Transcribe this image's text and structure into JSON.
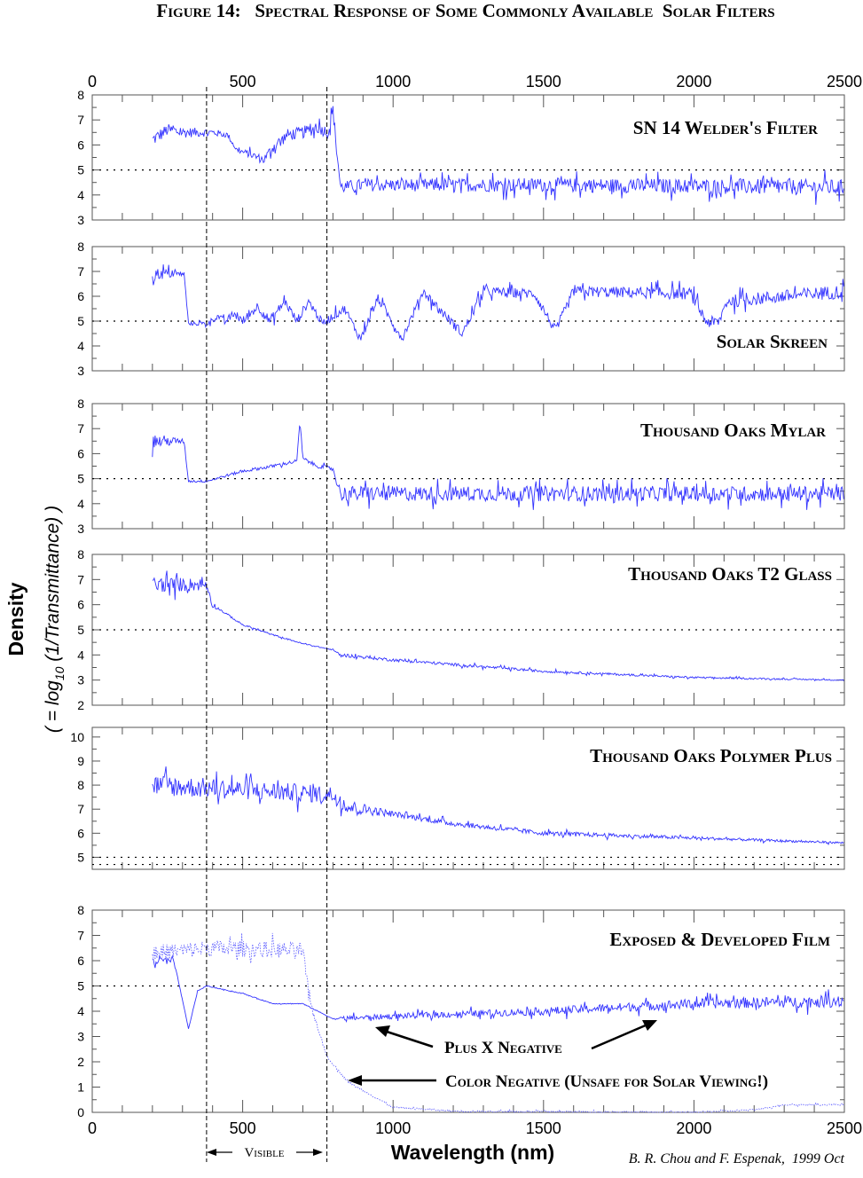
{
  "chart_data": {
    "type": "line",
    "title": "Figure 14:   Spectral Response of Some Commonly Available  Solar Filters",
    "xlabel": "Wavelength (nm)",
    "ylabel": "Density",
    "ylabel_sub_prefix": "( = log",
    "ylabel_sub_base": "10",
    "ylabel_sub_suffix": " (1/Transmittance) )",
    "xlim": [
      0,
      2500
    ],
    "xticks": [
      0,
      500,
      1000,
      1500,
      2000,
      2500
    ],
    "visible_band": {
      "label": "Visible",
      "range": [
        380,
        780
      ]
    },
    "credit": "B. R. Chou and F. Espenak,  1999 Oct",
    "color": "#3333ff",
    "panels": [
      {
        "label": "SN 14 Welder's Filter",
        "ylim": [
          3,
          8
        ],
        "yticks": [
          3,
          4,
          5,
          6,
          7,
          8
        ],
        "ref_lines": [
          5
        ],
        "series": [
          {
            "name": "SN 14 Welder's Filter",
            "style": "solid",
            "noise": [
              [
                200,
                0.35
              ],
              [
                480,
                0.12
              ],
              [
                620,
                0.3
              ],
              [
                2500,
                0.4
              ]
            ],
            "points": [
              [
                200,
                6.2
              ],
              [
                250,
                6.6
              ],
              [
                300,
                6.5
              ],
              [
                400,
                6.5
              ],
              [
                450,
                6.4
              ],
              [
                480,
                5.8
              ],
              [
                530,
                5.6
              ],
              [
                570,
                5.4
              ],
              [
                600,
                5.9
              ],
              [
                650,
                6.4
              ],
              [
                700,
                6.5
              ],
              [
                750,
                6.7
              ],
              [
                785,
                6.5
              ],
              [
                800,
                7.4
              ],
              [
                825,
                4.3
              ],
              [
                900,
                4.4
              ],
              [
                1500,
                4.4
              ],
              [
                2500,
                4.3
              ]
            ]
          }
        ]
      },
      {
        "label": "Solar Skreen",
        "ylim": [
          3,
          8
        ],
        "yticks": [
          3,
          4,
          5,
          6,
          7,
          8
        ],
        "ref_lines": [
          5
        ],
        "series": [
          {
            "name": "Solar Skreen",
            "style": "solid",
            "noise": [
              [
                200,
                0.35
              ],
              [
                320,
                0.08
              ],
              [
                540,
                0.25
              ],
              [
                850,
                0.2
              ],
              [
                2500,
                0.35
              ]
            ],
            "points": [
              [
                200,
                6.9
              ],
              [
                305,
                6.9
              ],
              [
                320,
                4.9
              ],
              [
                380,
                4.9
              ],
              [
                420,
                5.2
              ],
              [
                440,
                4.95
              ],
              [
                470,
                5.3
              ],
              [
                500,
                5.0
              ],
              [
                550,
                5.6
              ],
              [
                590,
                5.0
              ],
              [
                640,
                5.8
              ],
              [
                680,
                5.0
              ],
              [
                720,
                5.8
              ],
              [
                765,
                4.9
              ],
              [
                800,
                5.2
              ],
              [
                840,
                5.5
              ],
              [
                890,
                4.3
              ],
              [
                950,
                5.9
              ],
              [
                1030,
                4.3
              ],
              [
                1100,
                6.2
              ],
              [
                1160,
                5.4
              ],
              [
                1230,
                4.5
              ],
              [
                1300,
                6.2
              ],
              [
                1470,
                6.1
              ],
              [
                1540,
                4.6
              ],
              [
                1600,
                6.2
              ],
              [
                1990,
                6.1
              ],
              [
                2040,
                5.0
              ],
              [
                2080,
                4.9
              ],
              [
                2110,
                5.8
              ],
              [
                2500,
                6.2
              ]
            ]
          }
        ]
      },
      {
        "label": "Thousand Oaks Mylar",
        "ylim": [
          3,
          8
        ],
        "yticks": [
          3,
          4,
          5,
          6,
          7,
          8
        ],
        "ref_lines": [
          5
        ],
        "series": [
          {
            "name": "Thousand Oaks Mylar",
            "style": "solid",
            "noise": [
              [
                200,
                0.4
              ],
              [
                320,
                0.06
              ],
              [
                800,
                0.1
              ],
              [
                830,
                0.38
              ],
              [
                2500,
                0.38
              ]
            ],
            "points": [
              [
                200,
                6.5
              ],
              [
                305,
                6.5
              ],
              [
                320,
                4.9
              ],
              [
                380,
                4.9
              ],
              [
                500,
                5.3
              ],
              [
                600,
                5.5
              ],
              [
                680,
                5.7
              ],
              [
                690,
                7.3
              ],
              [
                700,
                5.8
              ],
              [
                750,
                5.5
              ],
              [
                800,
                5.4
              ],
              [
                825,
                4.4
              ],
              [
                2500,
                4.4
              ]
            ]
          }
        ]
      },
      {
        "label": "Thousand Oaks T2 Glass",
        "ylim": [
          2,
          8
        ],
        "yticks": [
          2,
          3,
          4,
          5,
          6,
          7,
          8
        ],
        "ref_lines": [
          5
        ],
        "series": [
          {
            "name": "Thousand Oaks T2 Glass",
            "style": "solid",
            "noise": [
              [
                200,
                0.4
              ],
              [
                380,
                0.3
              ],
              [
                420,
                0.05
              ],
              [
                800,
                0.02
              ],
              [
                830,
                0.08
              ],
              [
                2500,
                0.03
              ]
            ],
            "points": [
              [
                200,
                6.8
              ],
              [
                380,
                6.8
              ],
              [
                400,
                6.0
              ],
              [
                450,
                5.6
              ],
              [
                500,
                5.2
              ],
              [
                600,
                4.8
              ],
              [
                700,
                4.45
              ],
              [
                800,
                4.2
              ],
              [
                825,
                4.0
              ],
              [
                1000,
                3.8
              ],
              [
                1500,
                3.35
              ],
              [
                2000,
                3.1
              ],
              [
                2500,
                3.0
              ]
            ]
          }
        ]
      },
      {
        "label": "Thousand Oaks Polymer Plus",
        "ylim": [
          4.5,
          10.4
        ],
        "yticks": [
          5,
          6,
          7,
          8,
          9,
          10
        ],
        "ref_lines": [
          5,
          4.7
        ],
        "series": [
          {
            "name": "Thousand Oaks Polymer Plus",
            "style": "solid",
            "noise": [
              [
                200,
                0.55
              ],
              [
                800,
                0.45
              ],
              [
                1000,
                0.15
              ],
              [
                2500,
                0.05
              ]
            ],
            "points": [
              [
                200,
                8.0
              ],
              [
                800,
                7.6
              ],
              [
                850,
                7.1
              ],
              [
                1000,
                6.8
              ],
              [
                1200,
                6.4
              ],
              [
                1500,
                6.0
              ],
              [
                2000,
                5.8
              ],
              [
                2500,
                5.6
              ]
            ]
          }
        ]
      },
      {
        "label": "Exposed & Developed Film",
        "ylim": [
          0,
          8
        ],
        "yticks": [
          0,
          1,
          2,
          3,
          4,
          5,
          6,
          7,
          8
        ],
        "ref_lines": [
          5
        ],
        "series": [
          {
            "name": "Plus X Negative",
            "style": "solid",
            "noise": [
              [
                200,
                0.3
              ],
              [
                300,
                0.02
              ],
              [
                800,
                0.02
              ],
              [
                850,
                0.12
              ],
              [
                2500,
                0.3
              ]
            ],
            "points": [
              [
                200,
                6.0
              ],
              [
                270,
                6.0
              ],
              [
                290,
                5.0
              ],
              [
                320,
                3.3
              ],
              [
                350,
                4.8
              ],
              [
                380,
                5.0
              ],
              [
                500,
                4.7
              ],
              [
                600,
                4.3
              ],
              [
                700,
                4.3
              ],
              [
                800,
                3.7
              ],
              [
                1000,
                3.8
              ],
              [
                1500,
                4.0
              ],
              [
                2000,
                4.3
              ],
              [
                2500,
                4.4
              ]
            ]
          },
          {
            "name": "Color Negative (Unsafe for Solar Viewing!)",
            "style": "dotted",
            "noise": [
              [
                200,
                0.4
              ],
              [
                700,
                0.4
              ],
              [
                760,
                0.05
              ],
              [
                2500,
                0.04
              ]
            ],
            "points": [
              [
                200,
                6.3
              ],
              [
                400,
                6.5
              ],
              [
                700,
                6.4
              ],
              [
                720,
                4.5
              ],
              [
                780,
                2.2
              ],
              [
                850,
                1.2
              ],
              [
                1000,
                0.2
              ],
              [
                1200,
                0.05
              ],
              [
                2000,
                0.0
              ],
              [
                2200,
                0.1
              ],
              [
                2300,
                0.3
              ],
              [
                2500,
                0.3
              ]
            ]
          }
        ]
      }
    ],
    "annotations": {
      "plus_x": "Plus X Negative",
      "color_neg": "Color Negative (Unsafe for Solar Viewing!)"
    }
  }
}
